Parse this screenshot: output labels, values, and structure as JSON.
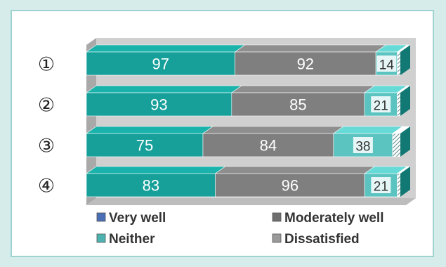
{
  "chart_data": {
    "type": "bar",
    "orientation": "horizontal",
    "stacked": true,
    "categories": [
      "①",
      "②",
      "③",
      "④"
    ],
    "series": [
      {
        "name": "Very well",
        "values": [
          97,
          93,
          75,
          83
        ],
        "color": "#17a09a",
        "legend_color": "#4a6fb5"
      },
      {
        "name": "Moderately well",
        "values": [
          92,
          85,
          84,
          96
        ],
        "color": "#7f7f7f",
        "legend_color": "#6f6f6f"
      },
      {
        "name": "Neither",
        "values": [
          14,
          21,
          38,
          21
        ],
        "color": "#5bc3c0",
        "legend_color": "#4db3b0"
      },
      {
        "name": "Dissatisfied",
        "values": [
          2,
          2,
          5,
          2
        ],
        "color": "#e8e8e8",
        "legend_color": "#9a9a9a"
      }
    ],
    "data_labels": [
      [
        "97",
        "92",
        "14",
        ""
      ],
      [
        "93",
        "85",
        "21",
        ""
      ],
      [
        "75",
        "84",
        "38",
        ""
      ],
      [
        "83",
        "96",
        "21",
        ""
      ]
    ],
    "legend_position": "bottom",
    "grid": false
  }
}
